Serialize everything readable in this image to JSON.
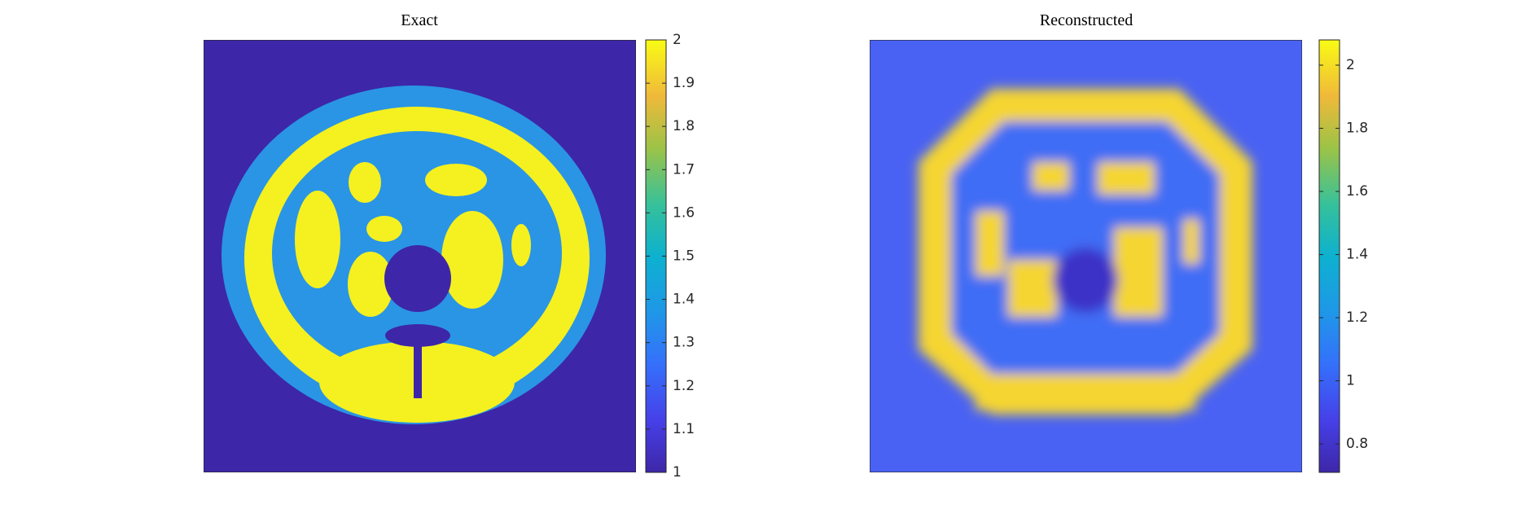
{
  "chart_data": [
    {
      "type": "heatmap",
      "title": "Exact",
      "clim": [
        1,
        2
      ],
      "cticks": [
        1,
        1.1,
        1.2,
        1.3,
        1.4,
        1.5,
        1.6,
        1.7,
        1.8,
        1.9,
        2
      ]
    },
    {
      "type": "heatmap",
      "title": "Reconstructed",
      "clim": [
        0.71,
        2.08
      ],
      "cticks": [
        0.8,
        1,
        1.2,
        1.4,
        1.6,
        1.8,
        2
      ]
    }
  ]
}
